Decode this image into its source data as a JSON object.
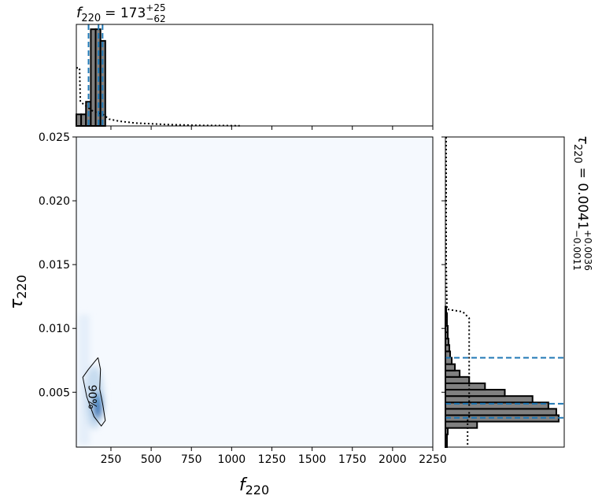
{
  "chart_data": [
    {
      "type": "contour",
      "xlabel": {
        "symbol": "f",
        "subscript": "220"
      },
      "ylabel": {
        "symbol": "τ",
        "subscript": "220"
      },
      "xlim": [
        35,
        2250
      ],
      "ylim": [
        0.0007,
        0.025
      ],
      "xticks": [
        250,
        500,
        750,
        1000,
        1250,
        1500,
        1750,
        2000,
        2250
      ],
      "yticks": [
        0.005,
        {
          "value": 0.01,
          "label": "0.010"
        },
        0.015,
        {
          "value": 0.02,
          "label": "0.020"
        },
        0.025
      ],
      "contour": {
        "label": "90%",
        "color": "#000000",
        "x": [
          170,
          185,
          180,
          200,
          215,
          190,
          145,
          100,
          75,
          110,
          150,
          170
        ],
        "y": [
          0.00771,
          0.00679,
          0.00525,
          0.00401,
          0.00278,
          0.00235,
          0.00309,
          0.00463,
          0.00617,
          0.00679,
          0.00741,
          0.00771
        ]
      }
    },
    {
      "type": "histogram",
      "title": {
        "symbol": "f",
        "subscript": "220",
        "value": "= 173",
        "upper": "+25",
        "lower": "−62"
      },
      "xlim": [
        35,
        2250
      ],
      "ylim": [
        0,
        1.05
      ],
      "color": "#808080",
      "bins": [
        35,
        65,
        95,
        125,
        155,
        185,
        215
      ],
      "values": [
        0.12,
        0.12,
        0.25,
        1.0,
        1.0,
        0.88
      ],
      "prior": {
        "x": [
          35,
          55,
          60,
          100,
          140,
          200,
          240,
          300,
          400,
          600,
          800,
          1000,
          1050
        ],
        "y": [
          0.6,
          0.6,
          0.25,
          0.2,
          0.15,
          0.12,
          0.07,
          0.05,
          0.03,
          0.015,
          0.006,
          0.003,
          0.002
        ]
      },
      "quantiles": [
        111,
        173,
        198
      ],
      "quantile_color": "#1f77b4"
    },
    {
      "type": "histogram-horizontal",
      "title": {
        "symbol": "τ",
        "subscript": "220",
        "value": "= 0.0041",
        "upper": "+0.0036",
        "lower": "−0.0011"
      },
      "xlim": [
        0,
        150
      ],
      "ylim": [
        0.0007,
        0.025
      ],
      "color": "#808080",
      "bins": [
        0.0007,
        0.0012,
        0.0017,
        0.0022,
        0.0027,
        0.0032,
        0.0037,
        0.0042,
        0.0047,
        0.0052,
        0.0057,
        0.0062,
        0.0067,
        0.0072,
        0.0077,
        0.0082,
        0.0087,
        0.0092,
        0.0097,
        0.0102,
        0.0107,
        0.0112,
        0.0117
      ],
      "values": [
        2,
        2,
        3,
        40,
        143,
        140,
        130,
        110,
        75,
        50,
        30,
        18,
        12,
        8,
        6,
        5,
        4,
        3,
        3,
        2,
        2,
        1
      ],
      "prior": {
        "x": [
          1,
          1,
          1,
          2,
          22,
          30,
          30,
          28,
          28
        ],
        "y": [
          0.025,
          0.02,
          0.015,
          0.0115,
          0.0113,
          0.0108,
          0.003,
          0.0028,
          0.0007
        ]
      },
      "quantiles": [
        0.003,
        0.0041,
        0.0077
      ],
      "quantile_color": "#1f77b4"
    }
  ]
}
